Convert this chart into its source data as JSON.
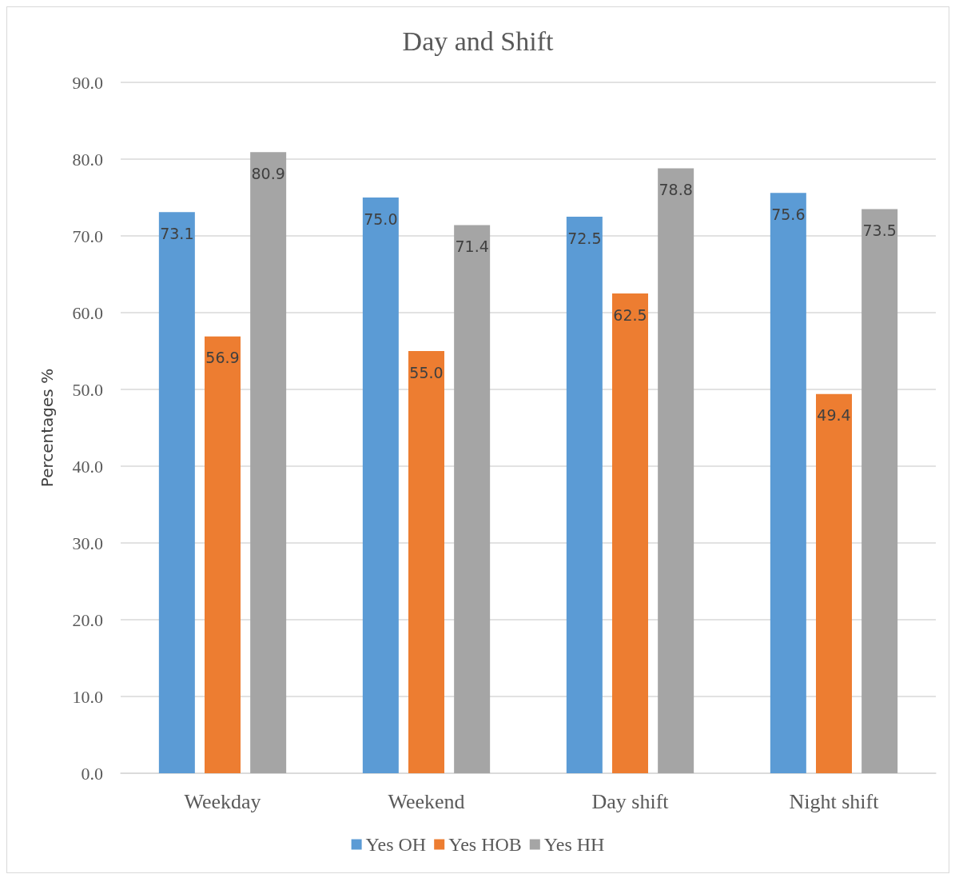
{
  "chart_data": {
    "type": "bar",
    "title": "Day and Shift",
    "ylabel": "Percentages %",
    "categories": [
      "Weekday",
      "Weekend",
      "Day shift",
      "Night shift"
    ],
    "series": [
      {
        "name": "Yes OH",
        "color": "#5b9bd5",
        "values": [
          73.1,
          75.0,
          72.5,
          75.6
        ],
        "value_labels": [
          "73.1",
          "75.0",
          "72.5",
          "75.6"
        ]
      },
      {
        "name": "Yes HOB",
        "color": "#ed7d31",
        "values": [
          56.9,
          55.0,
          62.5,
          49.4
        ],
        "value_labels": [
          "56.9",
          "55.0",
          "62.5",
          "49.4"
        ]
      },
      {
        "name": "Yes HH",
        "color": "#a5a5a5",
        "values": [
          80.9,
          71.4,
          78.8,
          73.5
        ],
        "value_labels": [
          "80.9",
          "71.4",
          "78.8",
          "73.5"
        ]
      }
    ],
    "ylim": [
      0,
      90
    ],
    "yticks": [
      {
        "value": 0,
        "label": "0.0"
      },
      {
        "value": 10,
        "label": "10.0"
      },
      {
        "value": 20,
        "label": "20.0"
      },
      {
        "value": 30,
        "label": "30.0"
      },
      {
        "value": 40,
        "label": "40.0"
      },
      {
        "value": 50,
        "label": "50.0"
      },
      {
        "value": 60,
        "label": "60.0"
      },
      {
        "value": 70,
        "label": "70.0"
      },
      {
        "value": 80,
        "label": "80.0"
      },
      {
        "value": 90,
        "label": "90.0"
      }
    ],
    "grid": "y",
    "legend": "bottom"
  }
}
